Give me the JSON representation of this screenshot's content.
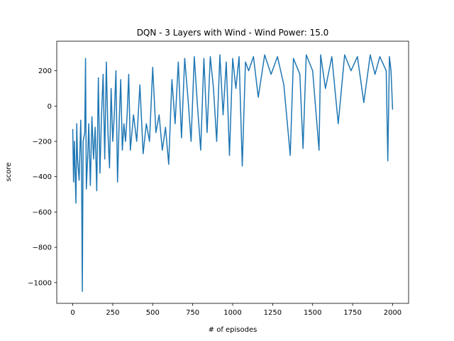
{
  "chart_data": {
    "type": "line",
    "title": "DQN - 3 Layers with Wind - Wind Power: 15.0",
    "x_label": "# of episodes",
    "y_label": "score",
    "xlim": [
      -100,
      2100
    ],
    "ylim": [
      -1117.5,
      367.5
    ],
    "xticks": [
      0,
      250,
      500,
      750,
      1000,
      1250,
      1500,
      1750,
      2000
    ],
    "yticks": [
      {
        "value": -1000,
        "label": "−1000"
      },
      {
        "value": -800,
        "label": "−800"
      },
      {
        "value": -600,
        "label": "−600"
      },
      {
        "value": -400,
        "label": "−400"
      },
      {
        "value": -200,
        "label": "−200"
      },
      0,
      200
    ],
    "grid": false,
    "series": [
      {
        "name": "score",
        "color": "#1f77b4",
        "x": [
          0,
          5,
          10,
          20,
          25,
          30,
          40,
          50,
          55,
          60,
          65,
          75,
          80,
          85,
          95,
          100,
          110,
          120,
          130,
          140,
          150,
          160,
          170,
          180,
          190,
          200,
          210,
          220,
          230,
          240,
          250,
          260,
          270,
          280,
          290,
          300,
          310,
          320,
          330,
          340,
          350,
          360,
          380,
          400,
          420,
          440,
          460,
          480,
          500,
          520,
          540,
          560,
          580,
          600,
          620,
          640,
          660,
          680,
          700,
          720,
          740,
          760,
          780,
          800,
          820,
          840,
          860,
          880,
          900,
          920,
          940,
          960,
          980,
          1000,
          1020,
          1040,
          1060,
          1080,
          1100,
          1130,
          1160,
          1200,
          1240,
          1280,
          1320,
          1360,
          1380,
          1420,
          1440,
          1460,
          1500,
          1540,
          1550,
          1580,
          1620,
          1660,
          1700,
          1740,
          1780,
          1820,
          1860,
          1890,
          1920,
          1960,
          1970,
          1980,
          1990,
          2000
        ],
        "values": [
          -130,
          -430,
          -200,
          -550,
          -100,
          -300,
          -420,
          -80,
          -350,
          -1050,
          -200,
          -150,
          270,
          -470,
          -250,
          -100,
          -450,
          -60,
          -300,
          -120,
          -480,
          160,
          -380,
          -50,
          180,
          -300,
          250,
          -150,
          -350,
          100,
          -200,
          -50,
          200,
          -430,
          -100,
          150,
          -250,
          -100,
          -200,
          -50,
          180,
          -250,
          -50,
          -200,
          120,
          -270,
          -100,
          -200,
          220,
          -150,
          -50,
          -250,
          -120,
          -330,
          150,
          -100,
          250,
          -180,
          270,
          50,
          -200,
          280,
          0,
          -250,
          270,
          -150,
          280,
          100,
          -200,
          290,
          -50,
          250,
          -280,
          270,
          100,
          280,
          -340,
          250,
          200,
          280,
          50,
          290,
          180,
          280,
          120,
          -280,
          270,
          180,
          -240,
          290,
          200,
          -250,
          290,
          100,
          280,
          -100,
          290,
          200,
          280,
          20,
          290,
          180,
          280,
          200,
          -310,
          280,
          200,
          -20
        ]
      }
    ]
  }
}
